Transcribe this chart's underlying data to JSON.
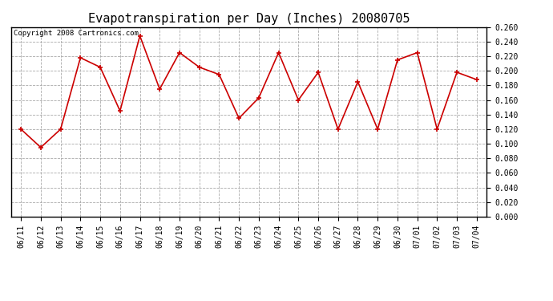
{
  "title": "Evapotranspiration per Day (Inches) 20080705",
  "copyright_text": "Copyright 2008 Cartronics.com",
  "labels": [
    "06/11",
    "06/12",
    "06/13",
    "06/14",
    "06/15",
    "06/16",
    "06/17",
    "06/18",
    "06/19",
    "06/20",
    "06/21",
    "06/22",
    "06/23",
    "06/24",
    "06/25",
    "06/26",
    "06/27",
    "06/28",
    "06/29",
    "06/30",
    "07/01",
    "07/02",
    "07/03",
    "07/04"
  ],
  "values": [
    0.12,
    0.095,
    0.12,
    0.218,
    0.205,
    0.145,
    0.248,
    0.175,
    0.225,
    0.205,
    0.195,
    0.135,
    0.163,
    0.225,
    0.16,
    0.198,
    0.12,
    0.185,
    0.12,
    0.215,
    0.225,
    0.12,
    0.198,
    0.188
  ],
  "line_color": "#cc0000",
  "marker": "+",
  "marker_size": 5,
  "ylim": [
    0.0,
    0.26
  ],
  "ytick_step": 0.02,
  "background_color": "#ffffff",
  "plot_bg_color": "#ffffff",
  "grid_color": "#aaaaaa",
  "title_fontsize": 11,
  "copyright_fontsize": 6.5,
  "tick_fontsize": 7
}
